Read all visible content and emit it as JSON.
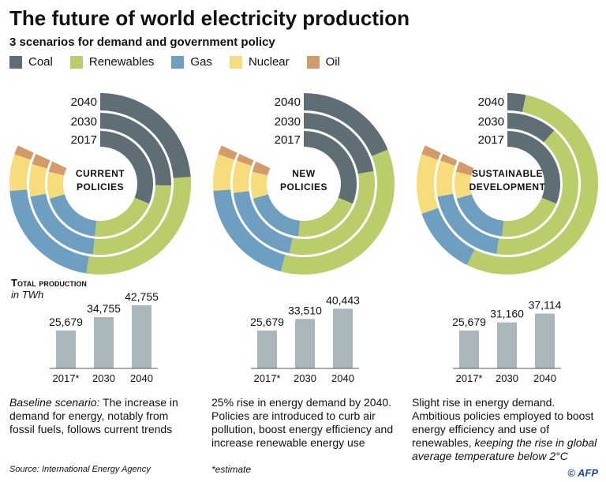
{
  "title": "The future of world electricity production",
  "subtitle": "3 scenarios for demand and government policy",
  "legend": [
    {
      "label": "Coal",
      "color": "#5e6e74"
    },
    {
      "label": "Renewables",
      "color": "#b9cd6a"
    },
    {
      "label": "Gas",
      "color": "#6e9fc0"
    },
    {
      "label": "Nuclear",
      "color": "#f7dc7c"
    },
    {
      "label": "Oil",
      "color": "#d49a6a"
    }
  ],
  "total_production": {
    "title": "Total production",
    "unit": "in TWh"
  },
  "chart_data": [
    {
      "type": "pie",
      "scenario": "CURRENT POLICIES",
      "center_label": [
        "CURRENT",
        "POLICIES"
      ],
      "categories": [
        "Coal",
        "Renewables",
        "Gas",
        "Nuclear",
        "Oil"
      ],
      "series": [
        {
          "name": "2017",
          "values": [
            38,
            25,
            23,
            10,
            4
          ]
        },
        {
          "name": "2030",
          "values": [
            31,
            32,
            25,
            9,
            3
          ]
        },
        {
          "name": "2040",
          "values": [
            29,
            35,
            26,
            8,
            2
          ]
        }
      ],
      "bars": {
        "type": "bar",
        "categories": [
          "2017*",
          "2030",
          "2040"
        ],
        "values": [
          25679,
          34755,
          42755
        ],
        "labels": [
          "25,679",
          "34,755",
          "42,755"
        ]
      },
      "description_italic": "Baseline scenario:",
      "description": " The increase in demand for energy, notably from fossil fuels, follows current trends"
    },
    {
      "type": "pie",
      "scenario": "NEW POLICIES",
      "center_label": [
        "NEW",
        "POLICIES"
      ],
      "categories": [
        "Coal",
        "Renewables",
        "Gas",
        "Nuclear",
        "Oil"
      ],
      "series": [
        {
          "name": "2017",
          "values": [
            38,
            25,
            23,
            10,
            4
          ]
        },
        {
          "name": "2030",
          "values": [
            27,
            38,
            24,
            9,
            2
          ]
        },
        {
          "name": "2040",
          "values": [
            23,
            43,
            24,
            8,
            2
          ]
        }
      ],
      "bars": {
        "type": "bar",
        "categories": [
          "2017*",
          "2030",
          "2040"
        ],
        "values": [
          25679,
          33510,
          40443
        ],
        "labels": [
          "25,679",
          "33,510",
          "40,443"
        ]
      },
      "description": "25% rise in energy demand by 2040. Policies are introduced to curb air pollution, boost energy efficiency and increase renewable energy use"
    },
    {
      "type": "pie",
      "scenario": "SUSTAINABLE DEVELOPMENT",
      "center_label": [
        "SUSTAINABLE",
        "DEVELOPMENT"
      ],
      "categories": [
        "Coal",
        "Renewables",
        "Gas",
        "Nuclear",
        "Oil"
      ],
      "series": [
        {
          "name": "2017",
          "values": [
            38,
            25,
            23,
            10,
            4
          ]
        },
        {
          "name": "2030",
          "values": [
            14,
            50,
            24,
            10,
            2
          ]
        },
        {
          "name": "2040",
          "values": [
            4,
            66,
            15,
            13,
            2
          ]
        }
      ],
      "bars": {
        "type": "bar",
        "categories": [
          "2017*",
          "2030",
          "2040"
        ],
        "values": [
          25679,
          31160,
          37114
        ],
        "labels": [
          "25,679",
          "31,160",
          "37,114"
        ]
      },
      "description": "Slight rise in energy demand. Ambitious policies employed to boost energy efficiency and use of renewables,",
      "description_italic": " keeping the rise in global average temperature below 2°C"
    }
  ],
  "bar_color": "#a9b7bc",
  "source": "Source: International Energy Agency",
  "note": "*estimate",
  "credit": "© AFP"
}
